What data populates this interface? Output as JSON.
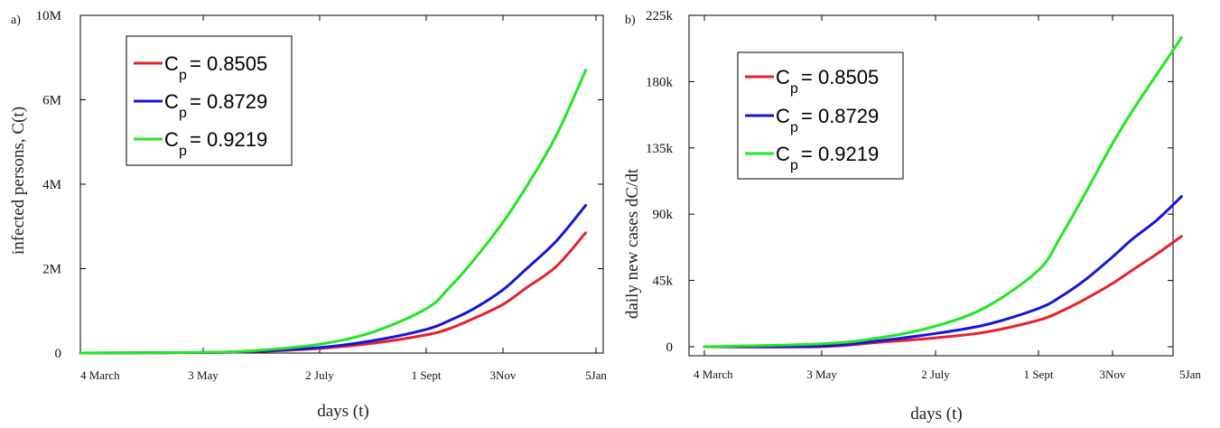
{
  "chart_data": [
    {
      "panel_label": "a)",
      "type": "line",
      "xlabel": "days (t)",
      "ylabel": "infected persons, C(t)",
      "x_ticks": [
        {
          "day": 0,
          "label": "4 March"
        },
        {
          "day": 60,
          "label": "3 May"
        },
        {
          "day": 120,
          "label": "2 July"
        },
        {
          "day": 181,
          "label": "1 Sept"
        },
        {
          "day": 244,
          "label": "3Nov"
        },
        {
          "day": 307,
          "label": "5Jan"
        }
      ],
      "xlim": [
        0,
        307
      ],
      "y_ticks": [
        {
          "value": 0,
          "label": "0"
        },
        {
          "value": 2000000,
          "label": "2M"
        },
        {
          "value": 4000000,
          "label": "4M"
        },
        {
          "value": 6000000,
          "label": "6M"
        },
        {
          "value": 10000000,
          "label": "10M"
        }
      ],
      "ylim": [
        0,
        10000000
      ],
      "y_note": "tick labels as printed: 0, 2M, 4M, 6M at equal spacing with 10M at the top",
      "legend_position": "top-left",
      "series": [
        {
          "name": "C_p = 0.8505",
          "legend_main": "C",
          "legend_sub": "p",
          "legend_value": "= 0.8505",
          "color": "#e8202a",
          "x": [
            0,
            60,
            90,
            120,
            150,
            181,
            200,
            220,
            244,
            260,
            280,
            300
          ],
          "y": [
            0,
            10000,
            40000,
            110000,
            230000,
            430000,
            580000,
            820000,
            1150000,
            1550000,
            2050000,
            2850000
          ]
        },
        {
          "name": "C_p = 0.8729",
          "legend_main": "C",
          "legend_sub": "p",
          "legend_value": "= 0.8729",
          "color": "#1414dc",
          "x": [
            0,
            60,
            90,
            120,
            150,
            181,
            200,
            220,
            244,
            260,
            280,
            300
          ],
          "y": [
            0,
            12000,
            50000,
            130000,
            290000,
            560000,
            770000,
            1050000,
            1500000,
            2000000,
            2650000,
            3500000
          ]
        },
        {
          "name": "C_p = 0.9219",
          "legend_main": "C",
          "legend_sub": "p",
          "legend_value": "= 0.9219",
          "color": "#22e622",
          "x": [
            0,
            60,
            90,
            120,
            150,
            181,
            200,
            220,
            244,
            260,
            280,
            300
          ],
          "y": [
            0,
            15000,
            70000,
            210000,
            490000,
            1050000,
            1550000,
            2200000,
            3100000,
            3950000,
            5150000,
            6700000
          ]
        }
      ]
    },
    {
      "panel_label": "b)",
      "type": "line",
      "xlabel": "days (t)",
      "ylabel": "daily new cases  dC/dt",
      "x_ticks": [
        {
          "day": 0,
          "label": "4 March"
        },
        {
          "day": 60,
          "label": "3 May"
        },
        {
          "day": 120,
          "label": "2 July"
        },
        {
          "day": 181,
          "label": "1 Sept"
        },
        {
          "day": 244,
          "label": "3Nov"
        },
        {
          "day": 307,
          "label": "5Jan"
        }
      ],
      "xlim": [
        0,
        307
      ],
      "y_ticks": [
        {
          "value": 0,
          "label": "0"
        },
        {
          "value": 45000,
          "label": "45k"
        },
        {
          "value": 90000,
          "label": "90k"
        },
        {
          "value": 135000,
          "label": "135k"
        },
        {
          "value": 180000,
          "label": "180k"
        },
        {
          "value": 225000,
          "label": "225k"
        }
      ],
      "ylim": [
        0,
        225000
      ],
      "legend_position": "top-left",
      "series": [
        {
          "name": "C_p = 0.8505",
          "legend_main": "C",
          "legend_sub": "p",
          "legend_value": "= 0.8505",
          "color": "#e8202a",
          "x": [
            0,
            60,
            90,
            120,
            150,
            181,
            200,
            220,
            244,
            260,
            280,
            300
          ],
          "y": [
            0,
            0,
            3000,
            6000,
            10000,
            18000,
            24000,
            32000,
            43000,
            52000,
            63000,
            75000
          ]
        },
        {
          "name": "C_p = 0.8729",
          "legend_main": "C",
          "legend_sub": "p",
          "legend_value": "= 0.8729",
          "color": "#1414dc",
          "x": [
            0,
            60,
            90,
            120,
            150,
            181,
            200,
            220,
            244,
            260,
            280,
            300
          ],
          "y": [
            0,
            500,
            4000,
            9000,
            15000,
            26000,
            34000,
            45000,
            61000,
            73000,
            86000,
            102000
          ]
        },
        {
          "name": "C_p = 0.9219",
          "legend_main": "C",
          "legend_sub": "p",
          "legend_value": "= 0.9219",
          "color": "#22e622",
          "x": [
            0,
            60,
            90,
            120,
            150,
            181,
            200,
            220,
            244,
            260,
            280,
            300
          ],
          "y": [
            0,
            2000,
            6000,
            14000,
            27000,
            52000,
            75000,
            103000,
            138000,
            160000,
            185000,
            210000
          ]
        }
      ]
    }
  ]
}
